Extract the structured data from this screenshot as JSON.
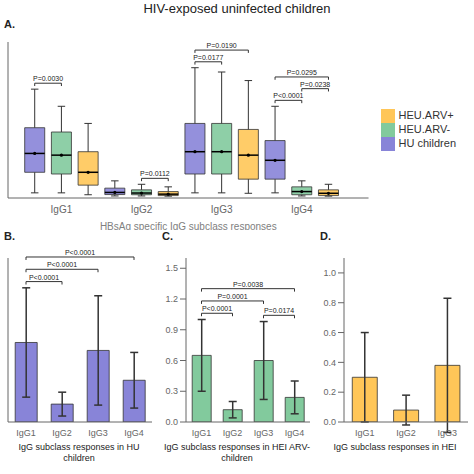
{
  "title": "HIV-exposed uninfected children",
  "chart_data": [
    {
      "type": "box",
      "title": "A.",
      "xlabel": "HBsAg specific IgG subclass responses",
      "categories": [
        "IgG1",
        "IgG2",
        "IgG3",
        "IgG4"
      ],
      "ylim": [
        -0.02,
        1.8
      ],
      "tick_labels": "x",
      "grid": false,
      "legend": "right",
      "series": [
        {
          "name": "HU children",
          "color": "#8884d8",
          "medians": [
            0.5,
            0.045,
            0.52,
            0.42
          ],
          "q1": [
            0.28,
            0.02,
            0.26,
            0.2
          ],
          "q3": [
            0.8,
            0.095,
            0.85,
            0.65
          ],
          "whisker_low": [
            0.04,
            0.004,
            0.04,
            0.04
          ],
          "whisker_high": [
            1.25,
            0.18,
            1.5,
            1.05
          ]
        },
        {
          "name": "HEU.ARV-",
          "color": "#82ca9d",
          "medians": [
            0.48,
            0.038,
            0.52,
            0.055
          ],
          "q1": [
            0.26,
            0.018,
            0.26,
            0.018
          ],
          "q3": [
            0.75,
            0.075,
            0.85,
            0.11
          ],
          "whisker_low": [
            0.04,
            0.004,
            0.04,
            0.004
          ],
          "whisker_high": [
            1.05,
            0.14,
            1.45,
            0.18
          ]
        },
        {
          "name": "HEU.ARV+",
          "color": "#ffc658",
          "medians": [
            0.28,
            0.025,
            0.48,
            0.035
          ],
          "q1": [
            0.13,
            0.008,
            0.2,
            0.008
          ],
          "q3": [
            0.52,
            0.055,
            0.78,
            0.075
          ],
          "whisker_low": [
            0.018,
            0.002,
            0.035,
            0.002
          ],
          "whisker_high": [
            0.85,
            0.11,
            1.35,
            0.14
          ]
        }
      ],
      "annotations": [
        {
          "text": "P=0.0030",
          "category": "IgG1",
          "from": "HU children",
          "to": "HEU.ARV-"
        },
        {
          "text": "P=0.0112",
          "category": "IgG2",
          "from": "HEU.ARV-",
          "to": "HEU.ARV+"
        },
        {
          "text": "P=0.0190",
          "category": "IgG3",
          "from": "HU children",
          "to": "HEU.ARV+"
        },
        {
          "text": "P=0.0177",
          "category": "IgG3",
          "from": "HU children",
          "to": "HEU.ARV-"
        },
        {
          "text": "P<0.0001",
          "category": "IgG4",
          "from": "HU children",
          "to": "HEU.ARV-"
        },
        {
          "text": "P=0.0295",
          "category": "IgG4",
          "from": "HU children",
          "to": "HEU.ARV+"
        },
        {
          "text": "P=0.0238",
          "category": "IgG4",
          "from": "HEU.ARV-",
          "to": "HEU.ARV+"
        }
      ]
    },
    {
      "type": "bar",
      "title": "B.",
      "xlabel": "IgG subclass responses in HU children",
      "categories": [
        "IgG1",
        "IgG2",
        "IgG3",
        "IgG4"
      ],
      "values": [
        0.8,
        0.18,
        0.72,
        0.42
      ],
      "errors": [
        0.55,
        0.12,
        0.55,
        0.28
      ],
      "color": "#8884d8",
      "ylim": [
        0,
        1.65
      ],
      "tick_labels": "x",
      "grid": false,
      "annotations": [
        {
          "text": "P<0.0001",
          "from": "IgG1",
          "to": "IgG2"
        },
        {
          "text": "P<0.0001",
          "from": "IgG1",
          "to": "IgG3"
        },
        {
          "text": "P<0.0001",
          "from": "IgG1",
          "to": "IgG4"
        }
      ]
    },
    {
      "type": "bar",
      "title": "C.",
      "xlabel": "IgG subclass responses in HEI ARV- children",
      "categories": [
        "IgG1",
        "IgG2",
        "IgG3",
        "IgG4"
      ],
      "values": [
        0.65,
        0.12,
        0.6,
        0.24
      ],
      "errors": [
        0.35,
        0.08,
        0.38,
        0.16
      ],
      "color": "#82ca9d",
      "ylim": [
        0,
        1.6
      ],
      "yticks": [
        {
          "value": 0.0,
          "label": "0.0"
        },
        0.3,
        0.6,
        0.9,
        1.2,
        1.5
      ],
      "grid": false,
      "annotations": [
        {
          "text": "P<0.0001",
          "from": "IgG1",
          "to": "IgG2"
        },
        {
          "text": "P=0.0001",
          "from": "IgG1",
          "to": "IgG3"
        },
        {
          "text": "P=0.0038",
          "from": "IgG1",
          "to": "IgG4"
        },
        {
          "text": "P=0.0174",
          "from": "IgG3",
          "to": "IgG4"
        }
      ]
    },
    {
      "type": "bar",
      "title": "D.",
      "xlabel": "IgG subclass responses in HEI",
      "categories": [
        "IgG1",
        "IgG2",
        "IgG3"
      ],
      "values": [
        0.3,
        0.08,
        0.38
      ],
      "errors": [
        0.3,
        0.1,
        0.45
      ],
      "color": "#ffc658",
      "ylim": [
        0,
        1.1
      ],
      "yticks": [
        {
          "value": 0.0,
          "label": "0.0"
        },
        0.2,
        0.4,
        0.6,
        0.8,
        {
          "value": 1.0,
          "label": "1.0"
        }
      ],
      "grid": false
    }
  ]
}
